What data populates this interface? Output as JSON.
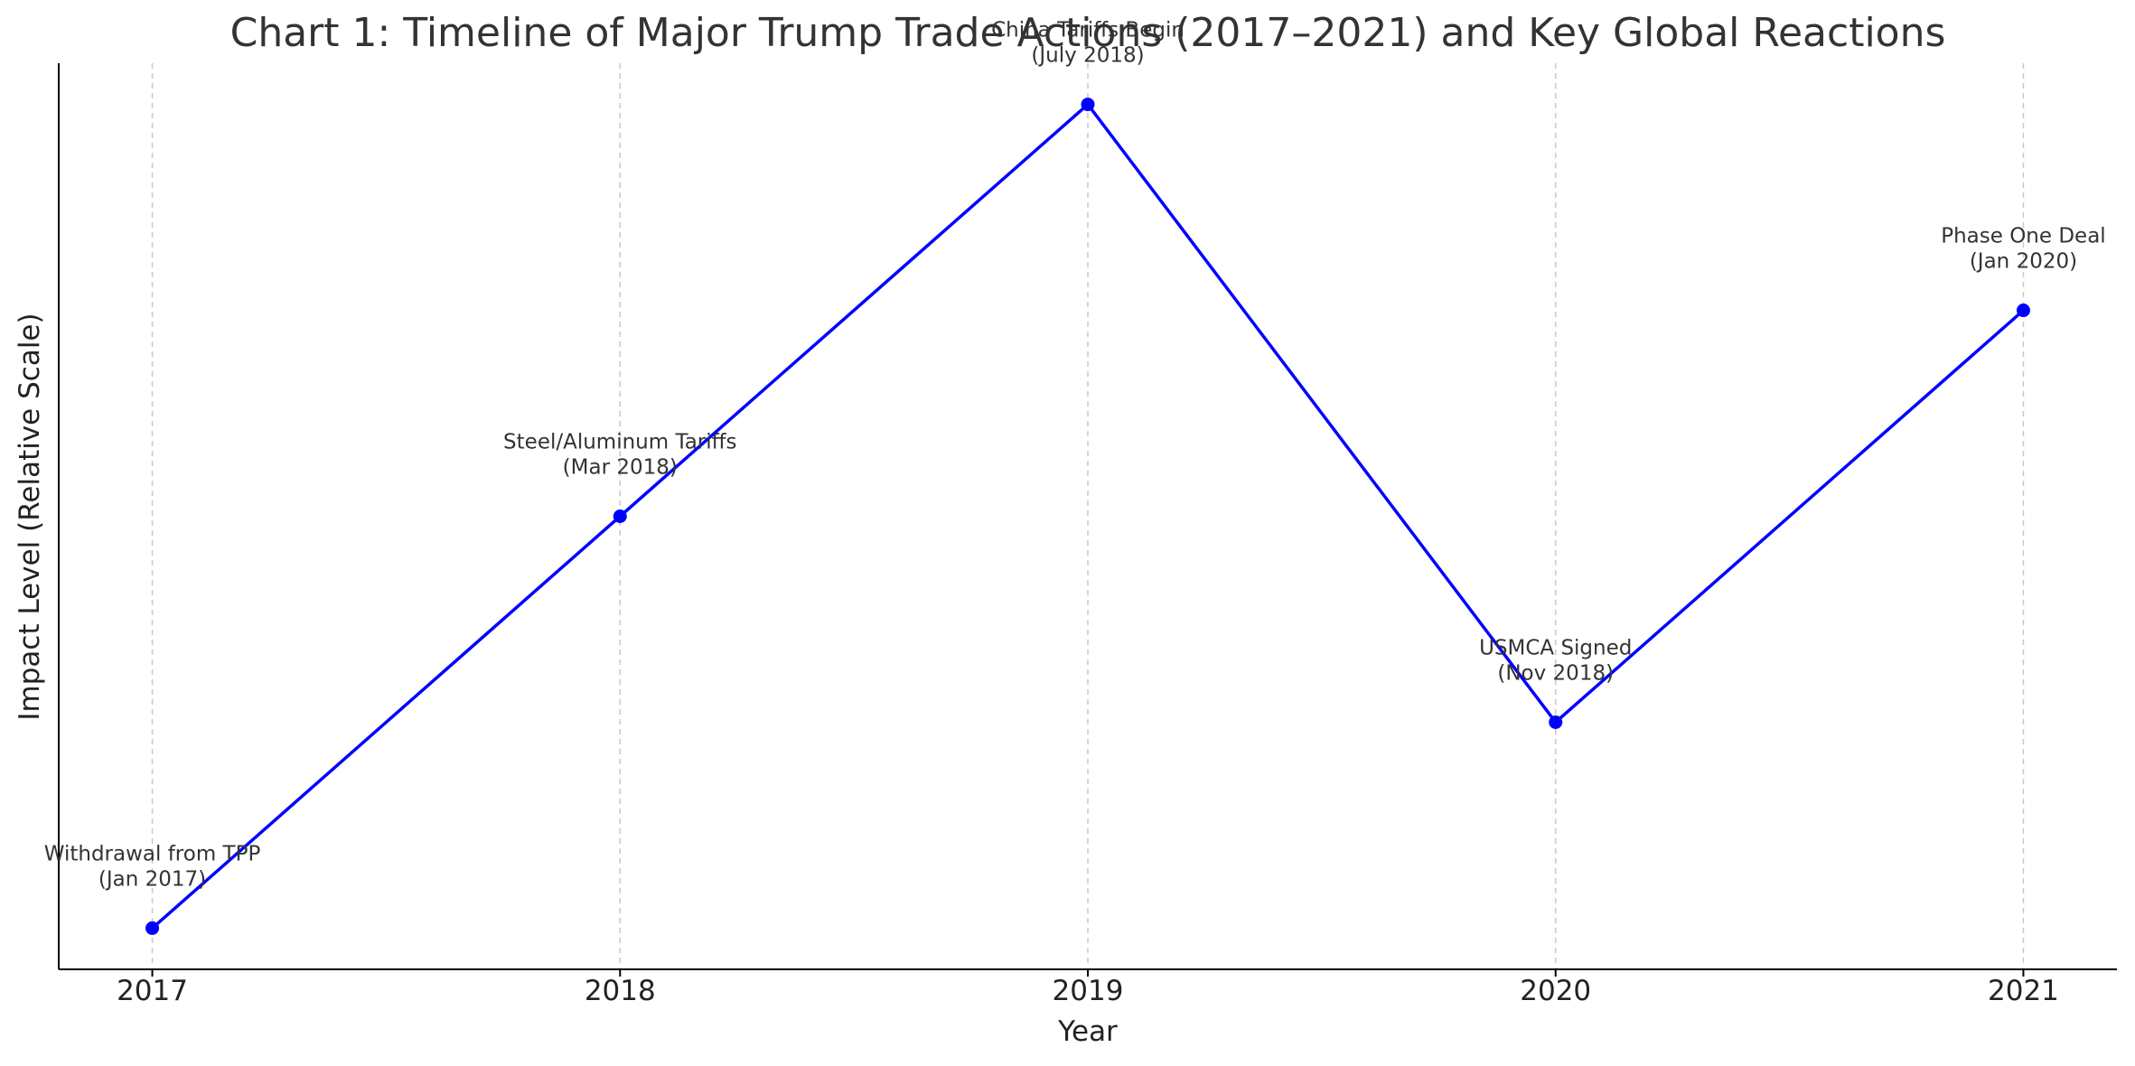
{
  "chart_data": {
    "type": "line",
    "title": "Chart 1: Timeline of Major Trump Trade Actions (2017–2021) and Key Global Reactions",
    "xlabel": "Year",
    "ylabel": "Impact Level (Relative Scale)",
    "x": [
      2017,
      2018,
      2019,
      2020,
      2021
    ],
    "x_ticks": [
      "2017",
      "2018",
      "2019",
      "2020",
      "2021"
    ],
    "xlim": [
      2016.8,
      2021.2
    ],
    "ylim": [
      0.4,
      7.0
    ],
    "y_ticks_visible": false,
    "grid": "vertical-dashed",
    "series": [
      {
        "values": [
          0.7,
          3.7,
          6.7,
          2.2,
          5.2
        ],
        "color": "#0000ff",
        "marker": "circle"
      }
    ],
    "annotations": [
      {
        "x": 2017,
        "line1": "Withdrawal from TPP",
        "line2": "(Jan 2017)"
      },
      {
        "x": 2018,
        "line1": "Steel/Aluminum Tariffs",
        "line2": "(Mar 2018)"
      },
      {
        "x": 2019,
        "line1": "China Tariffs Begin",
        "line2": "(July 2018)"
      },
      {
        "x": 2020,
        "line1": "USMCA Signed",
        "line2": "(Nov 2018)"
      },
      {
        "x": 2021,
        "line1": "Phase One Deal",
        "line2": "(Jan 2020)"
      }
    ]
  }
}
